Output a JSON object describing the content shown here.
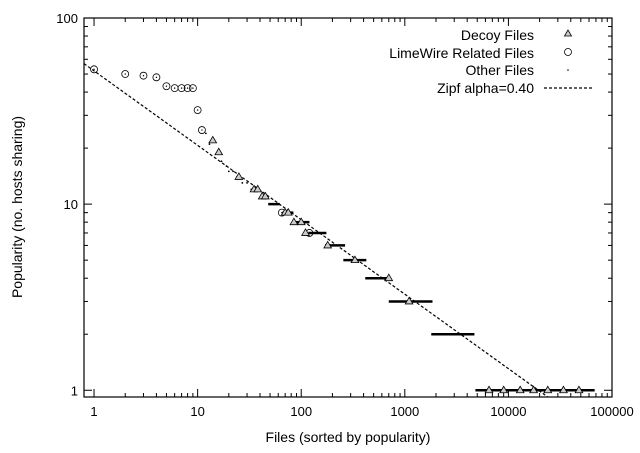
{
  "chart_data": {
    "type": "scatter",
    "title": "",
    "xlabel": "Files (sorted by popularity)",
    "ylabel": "Popularity (no. hosts sharing)",
    "xscale": "log",
    "yscale": "log",
    "xlim": [
      0.8,
      100000
    ],
    "ylim": [
      0.92,
      100
    ],
    "x_ticks": [
      1,
      10,
      100,
      1000,
      10000,
      100000
    ],
    "x_tick_labels": [
      "1",
      "10",
      "100",
      "1000",
      "10000",
      "100000"
    ],
    "y_ticks": [
      1,
      10,
      100
    ],
    "y_tick_labels": [
      "1",
      "10",
      "100"
    ],
    "legend_position": "top-right",
    "series": [
      {
        "name": "Decoy Files",
        "marker": "triangle",
        "x": [
          14,
          16,
          25,
          35,
          38,
          42,
          45,
          70,
          75,
          85,
          100,
          110,
          180,
          330,
          700,
          1100,
          6500,
          9000,
          13000,
          17500,
          24000,
          34000,
          48000
        ],
        "y": [
          22,
          19,
          14,
          12,
          12,
          11,
          11,
          9,
          9,
          8,
          8,
          7,
          6,
          5,
          4,
          3,
          1,
          1,
          1,
          1,
          1,
          1,
          1
        ]
      },
      {
        "name": "LimeWire Related Files",
        "marker": "circle",
        "x": [
          1,
          2,
          3,
          4,
          5,
          6,
          7,
          8,
          9,
          10,
          11,
          65,
          120
        ],
        "y": [
          53,
          50,
          49,
          48,
          43,
          42,
          42,
          42,
          42,
          32,
          25,
          9,
          7
        ]
      },
      {
        "name": "Other Files",
        "marker": "dot",
        "x": [
          12,
          13,
          17,
          19,
          20,
          22,
          24,
          27,
          30,
          33
        ],
        "y": [
          24,
          21,
          17,
          16,
          15,
          15,
          14,
          13,
          13,
          12
        ],
        "runs": [
          {
            "y": 10,
            "x_from": 48,
            "x_to": 62
          },
          {
            "y": 9,
            "x_from": 66,
            "x_to": 84
          },
          {
            "y": 8,
            "x_from": 86,
            "x_to": 120
          },
          {
            "y": 7,
            "x_from": 117,
            "x_to": 175
          },
          {
            "y": 6,
            "x_from": 170,
            "x_to": 265
          },
          {
            "y": 5,
            "x_from": 255,
            "x_to": 425
          },
          {
            "y": 4,
            "x_from": 415,
            "x_to": 720
          },
          {
            "y": 3,
            "x_from": 700,
            "x_to": 1850
          },
          {
            "y": 2,
            "x_from": 1800,
            "x_to": 4700
          },
          {
            "y": 1,
            "x_from": 4800,
            "x_to": 68000
          }
        ]
      },
      {
        "name": "Zipf alpha=0.40",
        "line": "dashed",
        "alpha": 0.4,
        "y_at_1": 52
      }
    ]
  }
}
